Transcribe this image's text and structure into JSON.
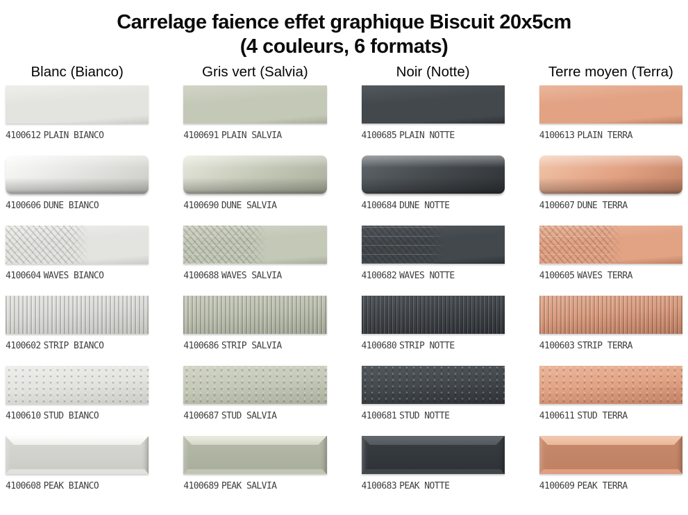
{
  "title": {
    "line1": "Carrelage faience effet graphique Biscuit 20x5cm",
    "line2": "(4 couleurs, 6 formats)"
  },
  "columns": [
    {
      "key": "bianco",
      "label": "Blanc (Bianco)"
    },
    {
      "key": "salvia",
      "label": "Gris vert (Salvia)"
    },
    {
      "key": "notte",
      "label": "Noir (Notte)"
    },
    {
      "key": "terra",
      "label": "Terre moyen (Terra)"
    }
  ],
  "colors": {
    "bianco": {
      "base": "#e3e3e0",
      "light": "#eeeeeb",
      "lighter": "#fbfbf9",
      "dark": "#cbcbc6",
      "face": "#d7d7d4"
    },
    "salvia": {
      "base": "#c4c8b7",
      "light": "#d2d5c6",
      "lighter": "#e6e8dc",
      "dark": "#a9ad9b",
      "face": "#b6baa8"
    },
    "notte": {
      "base": "#43484c",
      "light": "#53585d",
      "lighter": "#60666b",
      "dark": "#2e3236",
      "face": "#393e43"
    },
    "terra": {
      "base": "#e2a284",
      "light": "#eab69b",
      "lighter": "#f2c6ab",
      "dark": "#c08063",
      "face": "#c68a6b"
    }
  },
  "rows": [
    {
      "pattern": "plain",
      "items": [
        {
          "code": "4100612",
          "name": "PLAIN BIANCO"
        },
        {
          "code": "4100691",
          "name": "PLAIN SALVIA"
        },
        {
          "code": "4100685",
          "name": "PLAIN NOTTE"
        },
        {
          "code": "4100613",
          "name": "PLAIN TERRA"
        }
      ]
    },
    {
      "pattern": "dune",
      "items": [
        {
          "code": "4100606",
          "name": "DUNE BIANCO"
        },
        {
          "code": "4100690",
          "name": "DUNE SALVIA"
        },
        {
          "code": "4100684",
          "name": "DUNE NOTTE"
        },
        {
          "code": "4100607",
          "name": "DUNE TERRA"
        }
      ]
    },
    {
      "pattern": "waves",
      "items": [
        {
          "code": "4100604",
          "name": "WAVES BIANCO"
        },
        {
          "code": "4100688",
          "name": "WAVES SALVIA"
        },
        {
          "code": "4100682",
          "name": "WAVES NOTTE"
        },
        {
          "code": "4100605",
          "name": "WAVES TERRA"
        }
      ]
    },
    {
      "pattern": "strip",
      "items": [
        {
          "code": "4100602",
          "name": "STRIP BIANCO"
        },
        {
          "code": "4100686",
          "name": "STRIP SALVIA"
        },
        {
          "code": "4100680",
          "name": "STRIP NOTTE"
        },
        {
          "code": "4100603",
          "name": "STRIP TERRA"
        }
      ]
    },
    {
      "pattern": "stud",
      "items": [
        {
          "code": "4100610",
          "name": "STUD BIANCO"
        },
        {
          "code": "4100687",
          "name": "STUD SALVIA"
        },
        {
          "code": "4100681",
          "name": "STUD NOTTE"
        },
        {
          "code": "4100611",
          "name": "STUD TERRA"
        }
      ]
    },
    {
      "pattern": "peak",
      "items": [
        {
          "code": "4100608",
          "name": "PEAK BIANCO"
        },
        {
          "code": "4100689",
          "name": "PEAK SALVIA"
        },
        {
          "code": "4100683",
          "name": "PEAK NOTTE"
        },
        {
          "code": "4100609",
          "name": "PEAK TERRA"
        }
      ]
    }
  ]
}
